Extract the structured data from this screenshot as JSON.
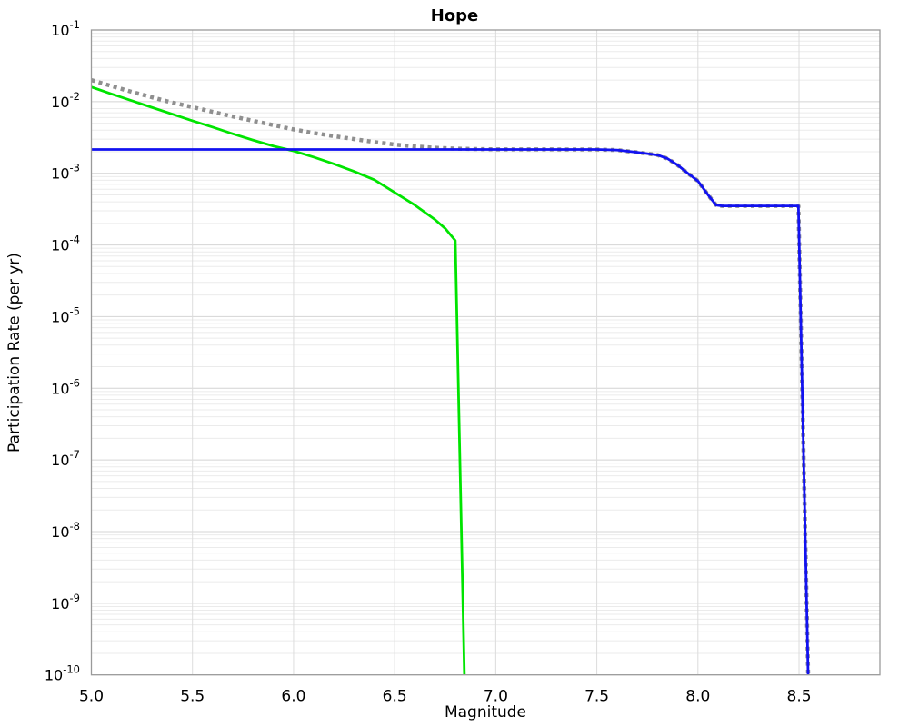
{
  "chart": {
    "title": "Hope",
    "xlabel": "Magnitude",
    "ylabel": "Participation Rate (per yr)"
  },
  "chart_data": {
    "type": "line",
    "title": "Hope",
    "xlabel": "Magnitude",
    "ylabel": "Participation Rate (per yr)",
    "legend": "none",
    "grid": "major-and-minor",
    "x_axis": {
      "min": 5.0,
      "max": 8.9,
      "scale": "linear",
      "tick_values": [
        5.0,
        5.5,
        6.0,
        6.5,
        7.0,
        7.5,
        8.0,
        8.5
      ],
      "tick_labels": [
        "5.0",
        "5.5",
        "6.0",
        "6.5",
        "7.0",
        "7.5",
        "8.0",
        "8.5"
      ]
    },
    "y_axis": {
      "scale": "log",
      "min": 1e-10,
      "max": 0.1,
      "tick_exponents": [
        -1,
        -2,
        -3,
        -4,
        -5,
        -6,
        -7,
        -8,
        -9,
        -10
      ],
      "tick_base": "10"
    },
    "series": [
      {
        "name": "gray-dotted-total",
        "style": "dotted",
        "color": "#8f8f8f",
        "width": 4.5,
        "points": [
          [
            5.0,
            0.02
          ],
          [
            5.1,
            0.0165
          ],
          [
            5.2,
            0.0137
          ],
          [
            5.3,
            0.0115
          ],
          [
            5.4,
            0.0097
          ],
          [
            5.5,
            0.0084
          ],
          [
            5.6,
            0.0072
          ],
          [
            5.7,
            0.0062
          ],
          [
            5.8,
            0.0054
          ],
          [
            5.9,
            0.0047
          ],
          [
            6.0,
            0.0041
          ],
          [
            6.1,
            0.00365
          ],
          [
            6.2,
            0.0033
          ],
          [
            6.3,
            0.003
          ],
          [
            6.4,
            0.00273
          ],
          [
            6.5,
            0.00252
          ],
          [
            6.6,
            0.00237
          ],
          [
            6.7,
            0.00227
          ],
          [
            6.8,
            0.00221
          ],
          [
            6.9,
            0.00218
          ],
          [
            7.0,
            0.00216
          ],
          [
            7.5,
            0.00215
          ],
          [
            7.6,
            0.00211
          ],
          [
            7.7,
            0.00196
          ],
          [
            7.8,
            0.0018
          ],
          [
            7.85,
            0.0016
          ],
          [
            7.9,
            0.0013
          ],
          [
            7.95,
            0.001
          ],
          [
            8.0,
            0.00078
          ],
          [
            8.05,
            0.0005
          ],
          [
            8.09,
            0.00036
          ],
          [
            8.12,
            0.00035
          ],
          [
            8.497,
            0.00035
          ],
          [
            8.545,
            1e-10
          ]
        ]
      },
      {
        "name": "green-solid-tapered",
        "style": "solid",
        "color": "#00e400",
        "width": 2.8,
        "points": [
          [
            5.0,
            0.016
          ],
          [
            5.1,
            0.0128
          ],
          [
            5.2,
            0.0103
          ],
          [
            5.3,
            0.0083
          ],
          [
            5.4,
            0.0067
          ],
          [
            5.5,
            0.0054
          ],
          [
            5.6,
            0.0044
          ],
          [
            5.7,
            0.00355
          ],
          [
            5.8,
            0.0029
          ],
          [
            5.9,
            0.0024
          ],
          [
            6.0,
            0.00205
          ],
          [
            6.1,
            0.00168
          ],
          [
            6.2,
            0.00135
          ],
          [
            6.3,
            0.00106
          ],
          [
            6.4,
            0.00081
          ],
          [
            6.5,
            0.00054
          ],
          [
            6.6,
            0.00036
          ],
          [
            6.7,
            0.000225
          ],
          [
            6.75,
            0.00017
          ],
          [
            6.8,
            0.000115
          ],
          [
            6.845,
            1e-10
          ]
        ]
      },
      {
        "name": "blue-solid-characteristic",
        "style": "solid",
        "color": "#1212f0",
        "width": 2.8,
        "points": [
          [
            5.0,
            0.00215
          ],
          [
            7.5,
            0.00215
          ],
          [
            7.6,
            0.00211
          ],
          [
            7.7,
            0.00196
          ],
          [
            7.8,
            0.0018
          ],
          [
            7.85,
            0.0016
          ],
          [
            7.9,
            0.0013
          ],
          [
            7.95,
            0.001
          ],
          [
            8.0,
            0.00078
          ],
          [
            8.05,
            0.0005
          ],
          [
            8.09,
            0.00036
          ],
          [
            8.12,
            0.00035
          ],
          [
            8.497,
            0.00035
          ],
          [
            8.545,
            1e-10
          ]
        ]
      }
    ],
    "plot_colors": {
      "frame": "#9a9a9a",
      "grid_major": "#d4d4d4",
      "grid_minor": "#ebebeb",
      "grid_vertical": "#dcdcdc",
      "background": "#ffffff"
    }
  }
}
